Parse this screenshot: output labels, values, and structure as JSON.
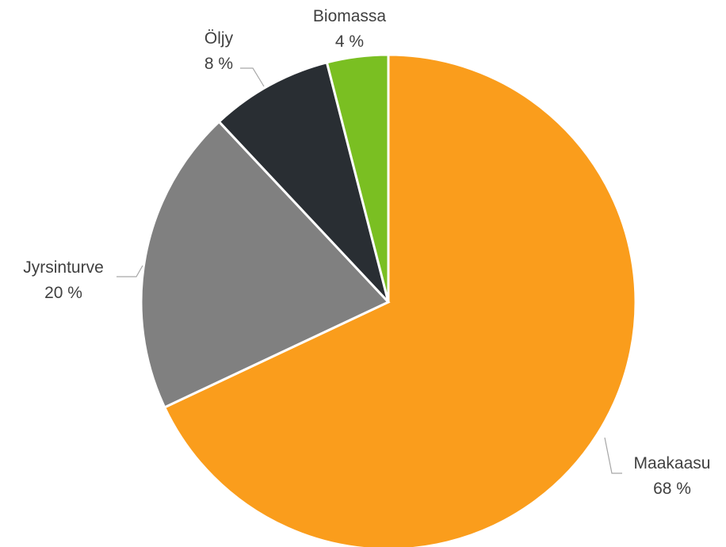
{
  "chart_data": {
    "type": "pie",
    "slices": [
      {
        "label": "Maakaasu",
        "value": 68,
        "value_label": "68 %",
        "color": "#FA9D1C"
      },
      {
        "label": "Jyrsinturve",
        "value": 20,
        "value_label": "20 %",
        "color": "#808080"
      },
      {
        "label": "Öljy",
        "value": 8,
        "value_label": "8 %",
        "color": "#292E33"
      },
      {
        "label": "Biomassa",
        "value": 4,
        "value_label": "4 %",
        "color": "#7ABF22"
      }
    ],
    "start_angle": "12 o'clock",
    "direction": "clockwise",
    "legend": "none",
    "data_labels": "outside-with-leader-lines"
  }
}
